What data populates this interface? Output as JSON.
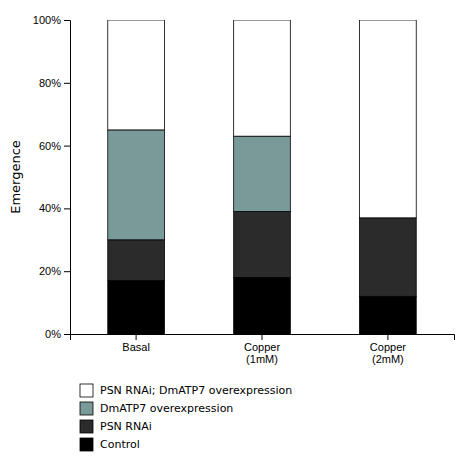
{
  "chart_data": {
    "type": "bar",
    "stacked": true,
    "y_label": "Emergence",
    "categories": [
      "Basal",
      "Copper\n(1mM)",
      "Copper\n(2mM)"
    ],
    "series": [
      {
        "name": "Control",
        "color": "#000000",
        "values": [
          17,
          18,
          12
        ]
      },
      {
        "name": "PSN RNAi",
        "color": "#2b2b2b",
        "values": [
          13,
          21,
          25
        ]
      },
      {
        "name": "DmATP7 overexpression",
        "color": "#7a9a9a",
        "values": [
          35,
          24,
          0
        ]
      },
      {
        "name": "PSN RNAi; DmATP7 overexpression",
        "color": "#ffffff",
        "values": [
          35,
          37,
          63
        ]
      }
    ],
    "ylim": [
      0,
      100
    ],
    "yticks": [
      {
        "value": 0,
        "label": "0%"
      },
      {
        "value": 20,
        "label": "20%"
      },
      {
        "value": 40,
        "label": "40%"
      },
      {
        "value": 60,
        "label": "60%"
      },
      {
        "value": 80,
        "label": "80%"
      },
      {
        "value": 100,
        "label": "100%"
      }
    ],
    "grid": false,
    "legend": "bottom"
  }
}
